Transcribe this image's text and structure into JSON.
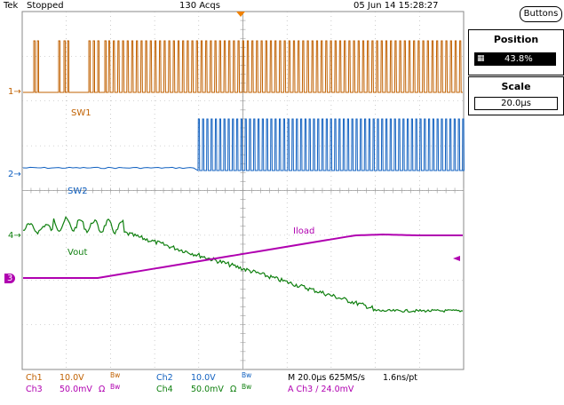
{
  "header": {
    "brand": "Tek",
    "run_state": "Stopped",
    "acquisitions": "130 Acqs",
    "datetime": "05 Jun 14 15:28:27"
  },
  "side_menu": {
    "buttons_label": "Buttons",
    "position_label": "Position",
    "position_value": "43.8%",
    "scale_label": "Scale",
    "scale_value": "20.0μs"
  },
  "channel_markers": {
    "ch1": "1",
    "ch2": "2",
    "ch3": "3",
    "ch4": "4"
  },
  "trace_labels": {
    "sw1": "SW1",
    "sw2": "SW2",
    "vout": "Vout",
    "iload": "Iload"
  },
  "settings": {
    "row1": {
      "ch1": "Ch1",
      "ch1_scale": "10.0V",
      "ch1_bw": "Bw",
      "ch2": "Ch2",
      "ch2_scale": "10.0V",
      "ch2_bw": "Bw",
      "timebase": "M 20.0μs 625MS/s",
      "resolution": "1.6ns/pt"
    },
    "row2": {
      "ch3": "Ch3",
      "ch3_scale": "50.0mV",
      "ch3_ohm": "Ω",
      "ch3_bw": "Bw",
      "ch4": "Ch4",
      "ch4_scale": "50.0mV",
      "ch4_ohm": "Ω",
      "ch4_bw": "Bw",
      "trigger": "A  Ch3  ∕  24.0mV"
    }
  },
  "colors": {
    "ch1": "#c06000",
    "ch2": "#1060c0",
    "ch3": "#b000b0",
    "ch4": "#108010",
    "trigger_marker": "#f08000"
  }
}
